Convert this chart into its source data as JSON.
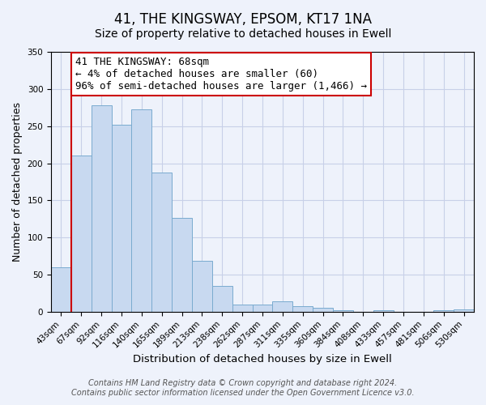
{
  "title": "41, THE KINGSWAY, EPSOM, KT17 1NA",
  "subtitle": "Size of property relative to detached houses in Ewell",
  "xlabel": "Distribution of detached houses by size in Ewell",
  "ylabel": "Number of detached properties",
  "bar_labels": [
    "43sqm",
    "67sqm",
    "92sqm",
    "116sqm",
    "140sqm",
    "165sqm",
    "189sqm",
    "213sqm",
    "238sqm",
    "262sqm",
    "287sqm",
    "311sqm",
    "335sqm",
    "360sqm",
    "384sqm",
    "408sqm",
    "433sqm",
    "457sqm",
    "481sqm",
    "506sqm",
    "530sqm"
  ],
  "bar_values": [
    60,
    210,
    278,
    252,
    273,
    187,
    126,
    69,
    35,
    10,
    10,
    14,
    7,
    5,
    2,
    0,
    2,
    0,
    0,
    2,
    3
  ],
  "bar_color": "#c8d9f0",
  "bar_edge_color": "#7aabcf",
  "ylim": [
    0,
    350
  ],
  "yticks": [
    0,
    50,
    100,
    150,
    200,
    250,
    300,
    350
  ],
  "property_line_color": "#cc0000",
  "annotation_text": "41 THE KINGSWAY: 68sqm\n← 4% of detached houses are smaller (60)\n96% of semi-detached houses are larger (1,466) →",
  "annotation_box_color": "#ffffff",
  "annotation_box_edge_color": "#cc0000",
  "footnote1": "Contains HM Land Registry data © Crown copyright and database right 2024.",
  "footnote2": "Contains public sector information licensed under the Open Government Licence v3.0.",
  "background_color": "#eef2fb",
  "plot_background_color": "#eef2fb",
  "grid_color": "#c8d0e8",
  "title_fontsize": 12,
  "subtitle_fontsize": 10,
  "xlabel_fontsize": 9.5,
  "ylabel_fontsize": 9,
  "tick_fontsize": 7.5,
  "annotation_fontsize": 9,
  "footnote_fontsize": 7
}
